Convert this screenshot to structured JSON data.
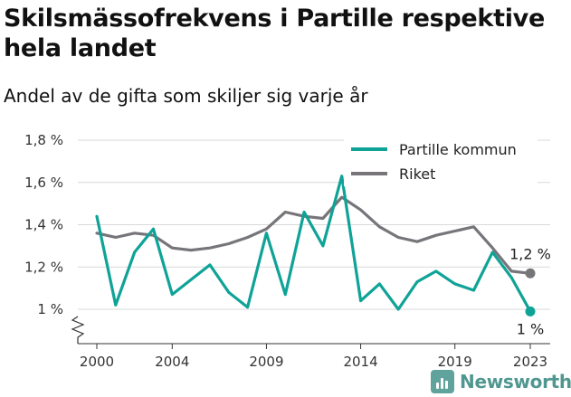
{
  "header": {
    "title": "Skilsmässofrekvens i Partille respektive hela landet",
    "subtitle": "Andel av de gifta som skiljer sig varje år"
  },
  "branding": {
    "name": "Newsworthy",
    "icon": "newsworthy-logo-icon",
    "color": "#4f9790"
  },
  "chart_data": {
    "type": "line",
    "title": "Skilsmässofrekvens i Partille respektive hela landet",
    "subtitle": "Andel av de gifta som skiljer sig varje år",
    "xlabel": "",
    "ylabel": "",
    "x": [
      2000,
      2001,
      2002,
      2003,
      2004,
      2005,
      2006,
      2007,
      2008,
      2009,
      2010,
      2011,
      2012,
      2013,
      2014,
      2015,
      2016,
      2017,
      2018,
      2019,
      2020,
      2021,
      2022,
      2023
    ],
    "xlim": [
      1999,
      2024
    ],
    "ylim": [
      0.85,
      1.85
    ],
    "y_axis_break": true,
    "x_ticks": [
      2000,
      2004,
      2009,
      2014,
      2019,
      2023
    ],
    "x_tick_labels": [
      "2000",
      "2004",
      "2009",
      "2014",
      "2019",
      "2023"
    ],
    "y_ticks": [
      1.0,
      1.2,
      1.4,
      1.6,
      1.8
    ],
    "y_tick_labels": [
      "1 %",
      "1,2 %",
      "1,4 %",
      "1,6 %",
      "1,8 %"
    ],
    "grid": "horizontal",
    "legend_position": "top-right",
    "series": [
      {
        "name": "Partille kommun",
        "color": "#0fa397",
        "values": [
          1.44,
          1.02,
          1.27,
          1.38,
          1.07,
          1.14,
          1.21,
          1.08,
          1.01,
          1.36,
          1.07,
          1.46,
          1.3,
          1.63,
          1.04,
          1.12,
          1.0,
          1.13,
          1.18,
          1.12,
          1.09,
          1.27,
          1.15,
          0.99
        ],
        "end_label": "1 %"
      },
      {
        "name": "Riket",
        "color": "#77757a",
        "values": [
          1.36,
          1.34,
          1.36,
          1.35,
          1.29,
          1.28,
          1.29,
          1.31,
          1.34,
          1.38,
          1.46,
          1.44,
          1.43,
          1.53,
          1.47,
          1.39,
          1.34,
          1.32,
          1.35,
          1.37,
          1.39,
          1.29,
          1.18,
          1.17
        ],
        "end_label": "1,2 %"
      }
    ]
  }
}
